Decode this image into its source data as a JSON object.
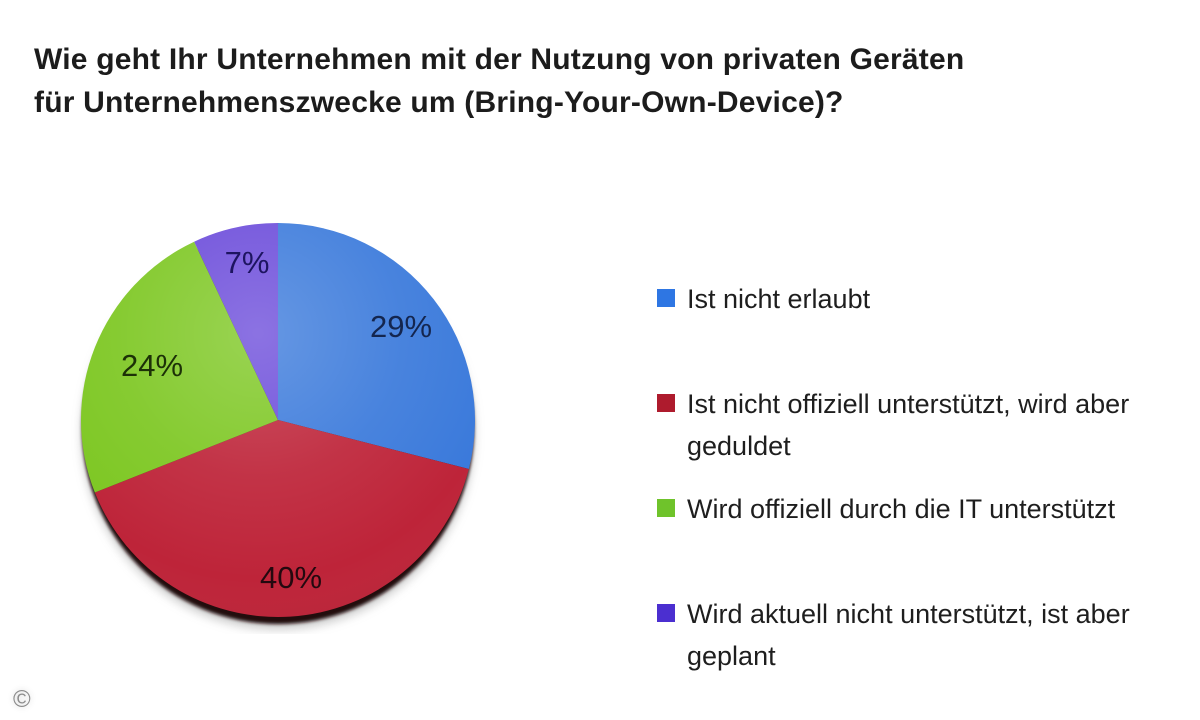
{
  "page": {
    "background": "#ffffff",
    "copyright": "©"
  },
  "header": {
    "title_line1": "Wie geht Ihr Unternehmen mit der Nutzung von privaten Geräten",
    "title_line2": "für Unternehmenszwecke um (Bring-Your-Own-Device)?"
  },
  "chart_data": {
    "type": "pie",
    "title": "Wie geht Ihr Unternehmen mit der Nutzung von privaten Geräten für Unternehmenszwecke um (Bring-Your-Own-Device)?",
    "start_angle_deg": 0,
    "direction": "clockwise",
    "legend_position": "right",
    "shadow_color": "#230810",
    "slices": [
      {
        "label": "Ist nicht erlaubt",
        "line1": "Ist nicht erlaubt",
        "line2": "",
        "value": 29,
        "display": "29%",
        "color": "#3B7ADB",
        "legend_color": "#2E76E3",
        "label_color": "#14264F"
      },
      {
        "label": "Ist nicht offiziell unterstützt, wird aber geduldet",
        "line1": "Ist nicht offiziell unterstützt, wird aber",
        "line2": "geduldet",
        "value": 40,
        "display": "40%",
        "color": "#BE2439",
        "legend_color": "#AE1B2D",
        "label_color": "#23090F"
      },
      {
        "label": "Wird offiziell durch die IT unterstützt",
        "line1": "Wird offiziell durch die IT unterstützt",
        "line2": "",
        "value": 24,
        "display": "24%",
        "color": "#7DC722",
        "legend_color": "#6FC32B",
        "label_color": "#1C3107"
      },
      {
        "label": "Wird aktuell nicht unterstützt, ist aber geplant",
        "line1": "Wird aktuell nicht unterstützt, ist aber",
        "line2": "geplant",
        "value": 7,
        "display": "7%",
        "color": "#6B4BDA",
        "legend_color": "#4B2FD0",
        "label_color": "#1D1460"
      }
    ]
  }
}
